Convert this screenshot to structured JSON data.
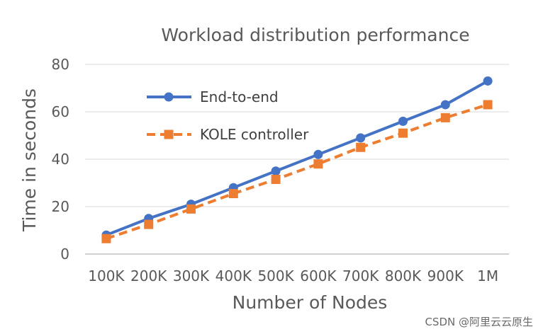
{
  "chart_data": {
    "type": "line",
    "title": "Workload distribution performance",
    "xlabel": "Number of Nodes",
    "ylabel": "Time in seconds",
    "categories": [
      "100K",
      "200K",
      "300K",
      "400K",
      "500K",
      "600K",
      "700K",
      "800K",
      "900K",
      "1M"
    ],
    "ylim": [
      0,
      80
    ],
    "yticks": [
      "0",
      "20",
      "40",
      "60",
      "80"
    ],
    "grid": true,
    "legend_position": "top-left",
    "series": [
      {
        "name": "End-to-end",
        "values": [
          8,
          15,
          21,
          28,
          35,
          42,
          49,
          56,
          63,
          73
        ],
        "color": "#4472C4",
        "line_style": "solid",
        "marker": "circle"
      },
      {
        "name": "KOLE controller",
        "values": [
          6.5,
          12.5,
          19,
          25.5,
          31.5,
          38,
          45,
          51,
          57.5,
          63
        ],
        "color": "#ED7D31",
        "line_style": "dashed",
        "marker": "square"
      }
    ]
  },
  "watermark": "CSDN @阿里云云原生"
}
